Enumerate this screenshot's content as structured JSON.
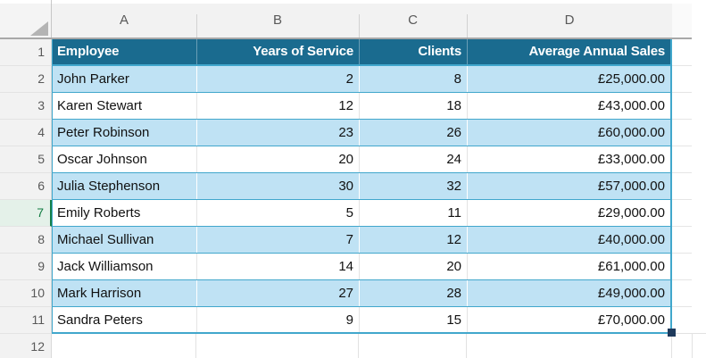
{
  "sheet": {
    "column_letters": [
      "A",
      "B",
      "C",
      "D"
    ],
    "row_numbers": [
      "1",
      "2",
      "3",
      "4",
      "5",
      "6",
      "7",
      "8",
      "9",
      "10",
      "11",
      "12"
    ],
    "active_row": "7"
  },
  "table": {
    "headers": [
      "Employee",
      "Years of Service",
      "Clients",
      "Average Annual Sales"
    ],
    "rows": [
      [
        "John Parker",
        "2",
        "8",
        "£25,000.00"
      ],
      [
        "Karen Stewart",
        "12",
        "18",
        "£43,000.00"
      ],
      [
        "Peter Robinson",
        "23",
        "26",
        "£60,000.00"
      ],
      [
        "Oscar Johnson",
        "20",
        "24",
        "£33,000.00"
      ],
      [
        "Julia Stephenson",
        "30",
        "32",
        "£57,000.00"
      ],
      [
        "Emily Roberts",
        "5",
        "11",
        "£29,000.00"
      ],
      [
        "Michael Sullivan",
        "7",
        "12",
        "£40,000.00"
      ],
      [
        "Jack Williamson",
        "14",
        "20",
        "£61,000.00"
      ],
      [
        "Mark Harrison",
        "27",
        "28",
        "£49,000.00"
      ],
      [
        "Sandra Peters",
        "9",
        "15",
        "£70,000.00"
      ]
    ]
  },
  "colors": {
    "table_header_fill": "#1A6B8F",
    "table_border": "#41A7CC",
    "banded_row_fill": "#BFE2F4",
    "plain_row_fill": "#FFFFFF",
    "active_row_highlight": "#107C41",
    "active_row_header_fill": "#E4F1E9",
    "resize_handle": "#1E3A5C",
    "header_band_fill": "#F2F2F2",
    "gridline": "#E2E2E2"
  },
  "icons": {
    "select_all_corner": "corner-triangle",
    "table_resize_handle": "small-square"
  }
}
